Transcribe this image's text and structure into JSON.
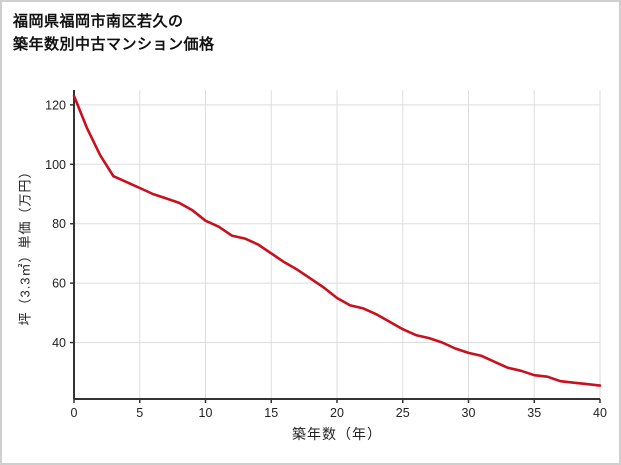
{
  "header": {
    "title_line1": "福岡県福岡市南区若久の",
    "title_line2": "築年数別中古マンション価格"
  },
  "chart_data": {
    "type": "line",
    "title": "福岡県福岡市南区若久の 築年数別中古マンション価格",
    "xlabel": "築年数（年）",
    "ylabel": "坪（3.3㎡）単価（万円）",
    "xlim": [
      0,
      40
    ],
    "ylim": [
      21,
      125
    ],
    "xticks": [
      0,
      5,
      10,
      15,
      20,
      25,
      30,
      35,
      40
    ],
    "yticks": [
      40,
      60,
      80,
      100,
      120
    ],
    "grid": true,
    "legend": false,
    "line_color": "#c8101e",
    "grid_color": "#dddddd",
    "axis_color": "#333333",
    "tick_label_color": "#222222",
    "x": [
      0,
      1,
      2,
      3,
      4,
      5,
      6,
      7,
      8,
      9,
      10,
      11,
      12,
      13,
      14,
      15,
      16,
      17,
      18,
      19,
      20,
      21,
      22,
      23,
      24,
      25,
      26,
      27,
      28,
      29,
      30,
      31,
      32,
      33,
      34,
      35,
      36,
      37,
      38,
      39,
      40
    ],
    "y": [
      123,
      112,
      103,
      96,
      94,
      92,
      90,
      88.5,
      87,
      84.5,
      81,
      79,
      76,
      75,
      73,
      70,
      67,
      64.5,
      61.5,
      58.5,
      55,
      52.5,
      51.5,
      49.5,
      47,
      44.5,
      42.5,
      41.5,
      40,
      38,
      36.5,
      35.5,
      33.5,
      31.5,
      30.5,
      29,
      28.5,
      27,
      26.5,
      26,
      25.5
    ]
  }
}
